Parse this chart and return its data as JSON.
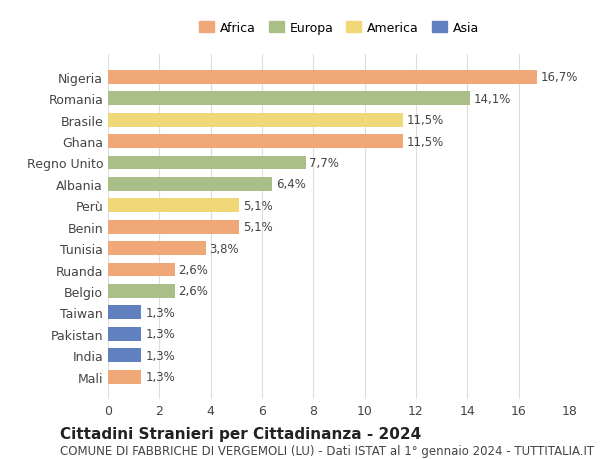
{
  "countries": [
    "Nigeria",
    "Romania",
    "Brasile",
    "Ghana",
    "Regno Unito",
    "Albania",
    "Perù",
    "Benin",
    "Tunisia",
    "Ruanda",
    "Belgio",
    "Taiwan",
    "Pakistan",
    "India",
    "Mali"
  ],
  "values": [
    16.7,
    14.1,
    11.5,
    11.5,
    7.7,
    6.4,
    5.1,
    5.1,
    3.8,
    2.6,
    2.6,
    1.3,
    1.3,
    1.3,
    1.3
  ],
  "labels": [
    "16,7%",
    "14,1%",
    "11,5%",
    "11,5%",
    "7,7%",
    "6,4%",
    "5,1%",
    "5,1%",
    "3,8%",
    "2,6%",
    "2,6%",
    "1,3%",
    "1,3%",
    "1,3%",
    "1,3%"
  ],
  "continents": [
    "Africa",
    "Europa",
    "America",
    "Africa",
    "Europa",
    "Europa",
    "America",
    "Africa",
    "Africa",
    "Africa",
    "Europa",
    "Asia",
    "Asia",
    "Asia",
    "Africa"
  ],
  "colors": {
    "Africa": "#F0A878",
    "Europa": "#AABF88",
    "America": "#F0D878",
    "Asia": "#6080C0"
  },
  "legend_order": [
    "Africa",
    "Europa",
    "America",
    "Asia"
  ],
  "title": "Cittadini Stranieri per Cittadinanza - 2024",
  "subtitle": "COMUNE DI FABBRICHE DI VERGEMOLI (LU) - Dati ISTAT al 1° gennaio 2024 - TUTTITALIA.IT",
  "xlim": [
    0,
    18
  ],
  "xticks": [
    0,
    2,
    4,
    6,
    8,
    10,
    12,
    14,
    16,
    18
  ],
  "background_color": "#ffffff",
  "grid_color": "#dddddd",
  "bar_height": 0.65,
  "title_fontsize": 11,
  "subtitle_fontsize": 8.5,
  "tick_fontsize": 9,
  "label_fontsize": 8.5,
  "legend_fontsize": 9
}
